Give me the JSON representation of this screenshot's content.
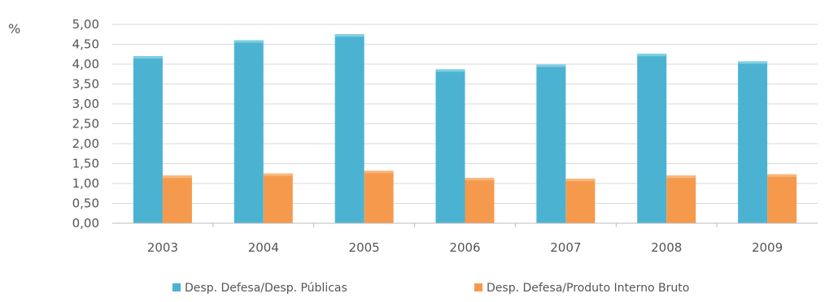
{
  "chart_data": {
    "type": "bar",
    "unit_label": "%",
    "categories": [
      "2003",
      "2004",
      "2005",
      "2006",
      "2007",
      "2008",
      "2009"
    ],
    "series": [
      {
        "name": "Desp. Defesa/Desp. Públicas",
        "color": "#4bb3d1",
        "values": [
          4.2,
          4.6,
          4.75,
          3.87,
          3.99,
          4.26,
          4.07
        ]
      },
      {
        "name": "Desp. Defesa/Produto Interno Bruto",
        "color": "#f59a4c",
        "values": [
          1.2,
          1.25,
          1.32,
          1.14,
          1.12,
          1.2,
          1.23
        ]
      }
    ],
    "yticks": [
      "0,00",
      "0,50",
      "1,00",
      "1,50",
      "2,00",
      "2,50",
      "3,00",
      "3,50",
      "4,00",
      "4,50",
      "5,00"
    ],
    "ylim": [
      0,
      5
    ],
    "grid": true,
    "legend": "bottom"
  }
}
